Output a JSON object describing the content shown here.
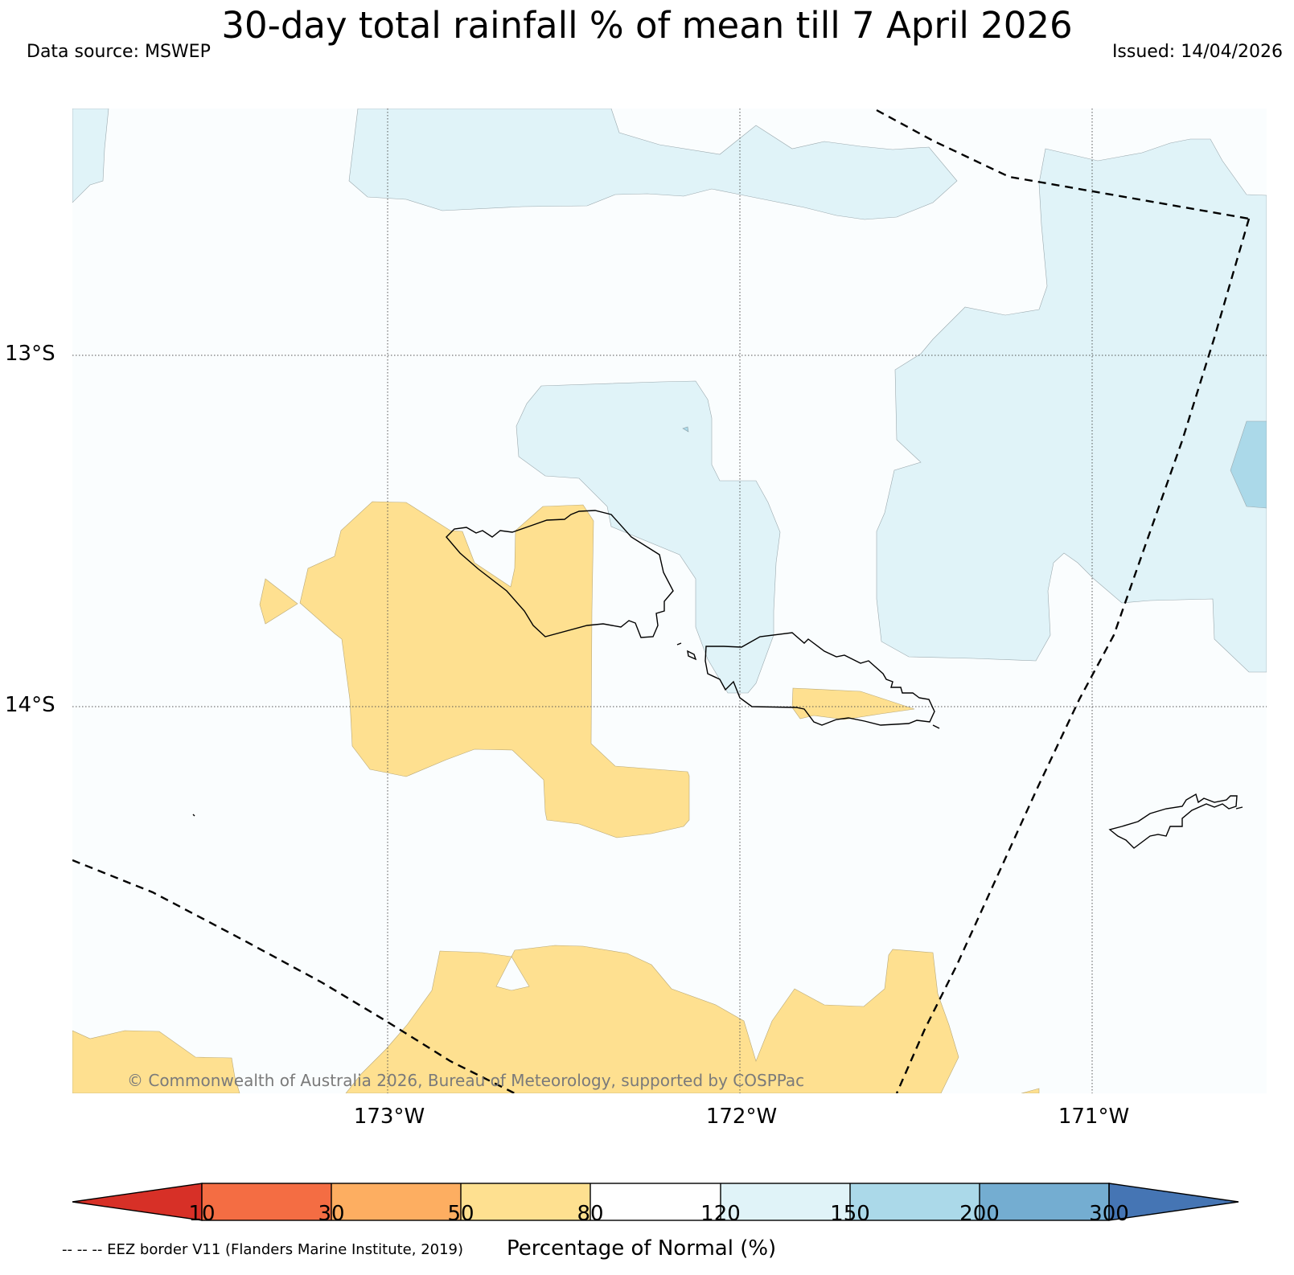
{
  "title": "30-day total rainfall % of mean till 7 April 2026",
  "data_source": "Data source: MSWEP",
  "issued": "Issued: 14/04/2026",
  "copyright": "© Commonwealth of Australia 2026, Bureau of Meteorology, supported by COSPPac",
  "eez_note": "-- -- -- EEZ border V11 (Flanders Marine Institute, 2019)",
  "lat_labels": [
    "13°S",
    "14°S"
  ],
  "lon_labels": [
    "173°W",
    "172°W",
    "171°W"
  ],
  "colorbar": {
    "title": "Percentage of Normal (%)",
    "ticks": [
      "10",
      "30",
      "50",
      "80",
      "120",
      "150",
      "200",
      "300"
    ],
    "colors": {
      "below_10": "#d73027",
      "10_30": "#f46d43",
      "30_50": "#fdae61",
      "50_80": "#fee090",
      "80_120": "#ffffff",
      "120_150": "#e0f3f8",
      "150_200": "#abd9e9",
      "200_300": "#74add1",
      "above_300": "#4575b4"
    }
  }
}
